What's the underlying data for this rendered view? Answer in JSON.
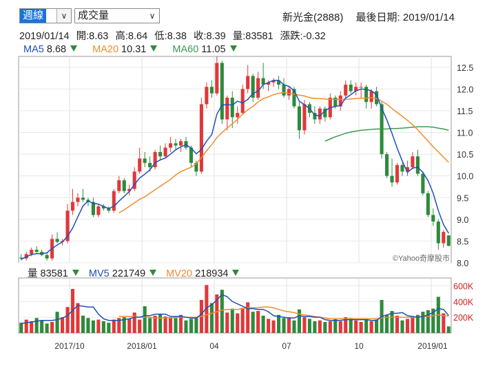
{
  "controls": {
    "period": "週線",
    "indicator": "成交量"
  },
  "header": {
    "name": "新光金(2888)",
    "last_date_label": "最後日期: 2019/01/14"
  },
  "ohlc_line": {
    "date": "2019/01/14",
    "open": "開:8.63",
    "high": "高:8.64",
    "low": "低:8.38",
    "close": "收:8.39",
    "volume": "量:83581",
    "change": "漲跌:-0.32"
  },
  "ma_legend": [
    {
      "label": "MA5",
      "value": "8.68",
      "color": "#1f4fb8"
    },
    {
      "label": "MA20",
      "value": "10.31",
      "color": "#f08c2a"
    },
    {
      "label": "MA60",
      "value": "11.05",
      "color": "#3d9a4d"
    }
  ],
  "vol_legend": [
    {
      "label": "量",
      "value": "83581",
      "color": "#222222"
    },
    {
      "label": "MV5",
      "value": "221749",
      "color": "#1f4fb8"
    },
    {
      "label": "MV20",
      "value": "218934",
      "color": "#f08c2a"
    }
  ],
  "watermark": "©Yahoo奇摩股市",
  "colors": {
    "up": "#e0383a",
    "down": "#2e8a3c",
    "ma5": "#1f4fb8",
    "ma20": "#f08c2a",
    "ma60": "#3d9a4d",
    "axis_text": "#cc2222"
  },
  "chart_data": [
    {
      "type": "candlestick",
      "x_labels": [
        "2017/10",
        "2018/01",
        "04",
        "07",
        "10",
        "2019/01"
      ],
      "y_ticks": [
        "8.0",
        "8.5",
        "9.0",
        "9.5",
        "10.0",
        "10.5",
        "11.0",
        "11.5",
        "12.0",
        "12.5"
      ],
      "ylim": [
        8.0,
        12.75
      ],
      "candles": [
        [
          8.12,
          8.2,
          8.05,
          8.1
        ],
        [
          8.1,
          8.25,
          8.05,
          8.2
        ],
        [
          8.2,
          8.35,
          8.15,
          8.3
        ],
        [
          8.3,
          8.38,
          8.2,
          8.25
        ],
        [
          8.25,
          8.3,
          8.15,
          8.18
        ],
        [
          8.18,
          8.22,
          8.05,
          8.1
        ],
        [
          8.1,
          8.65,
          8.05,
          8.55
        ],
        [
          8.55,
          8.7,
          8.45,
          8.48
        ],
        [
          8.48,
          8.55,
          8.4,
          8.5
        ],
        [
          8.5,
          9.35,
          8.45,
          9.2
        ],
        [
          9.2,
          9.7,
          9.1,
          9.4
        ],
        [
          9.4,
          9.6,
          9.3,
          9.5
        ],
        [
          9.5,
          9.7,
          9.4,
          9.45
        ],
        [
          9.45,
          9.5,
          9.3,
          9.4
        ],
        [
          9.4,
          9.5,
          9.05,
          9.1
        ],
        [
          9.1,
          9.35,
          9.05,
          9.3
        ],
        [
          9.3,
          9.35,
          9.2,
          9.25
        ],
        [
          9.25,
          9.3,
          9.15,
          9.2
        ],
        [
          9.2,
          9.7,
          9.15,
          9.65
        ],
        [
          9.65,
          10.0,
          9.6,
          9.9
        ],
        [
          9.9,
          9.95,
          9.6,
          9.65
        ],
        [
          9.65,
          9.8,
          9.55,
          9.7
        ],
        [
          9.7,
          10.2,
          9.65,
          10.1
        ],
        [
          10.1,
          10.65,
          10.05,
          10.4
        ],
        [
          10.4,
          10.55,
          10.2,
          10.3
        ],
        [
          10.3,
          10.45,
          10.1,
          10.2
        ],
        [
          10.2,
          10.6,
          10.15,
          10.55
        ],
        [
          10.55,
          10.7,
          10.35,
          10.45
        ],
        [
          10.45,
          10.75,
          10.4,
          10.65
        ],
        [
          10.65,
          10.9,
          10.55,
          10.75
        ],
        [
          10.75,
          10.85,
          10.6,
          10.7
        ],
        [
          10.7,
          10.85,
          10.55,
          10.8
        ],
        [
          10.8,
          10.9,
          10.6,
          10.65
        ],
        [
          10.65,
          10.7,
          10.2,
          10.3
        ],
        [
          10.3,
          10.35,
          10.0,
          10.1
        ],
        [
          10.1,
          11.8,
          10.05,
          11.65
        ],
        [
          11.65,
          12.15,
          11.55,
          12.05
        ],
        [
          12.05,
          12.2,
          11.8,
          11.9
        ],
        [
          11.9,
          12.75,
          11.85,
          12.6
        ],
        [
          12.6,
          12.65,
          11.2,
          11.3
        ],
        [
          11.3,
          11.85,
          11.05,
          11.8
        ],
        [
          11.8,
          11.95,
          11.1,
          11.35
        ],
        [
          11.35,
          11.6,
          11.2,
          11.45
        ],
        [
          11.45,
          12.1,
          11.4,
          12.0
        ],
        [
          12.0,
          12.55,
          11.9,
          12.3
        ],
        [
          12.3,
          12.35,
          11.7,
          11.8
        ],
        [
          11.8,
          12.4,
          11.75,
          12.25
        ],
        [
          12.25,
          12.6,
          12.0,
          12.1
        ],
        [
          12.1,
          12.2,
          11.95,
          12.15
        ],
        [
          12.15,
          12.25,
          12.05,
          12.2
        ],
        [
          12.2,
          12.3,
          12.0,
          12.1
        ],
        [
          12.1,
          12.25,
          11.8,
          11.85
        ],
        [
          11.85,
          12.05,
          11.75,
          12.0
        ],
        [
          12.0,
          12.05,
          11.55,
          11.6
        ],
        [
          11.6,
          11.7,
          10.85,
          11.05
        ],
        [
          11.05,
          11.75,
          10.95,
          11.65
        ],
        [
          11.65,
          11.7,
          11.35,
          11.45
        ],
        [
          11.45,
          11.6,
          11.2,
          11.3
        ],
        [
          11.3,
          11.6,
          11.2,
          11.55
        ],
        [
          11.55,
          11.6,
          11.25,
          11.35
        ],
        [
          11.35,
          11.9,
          11.3,
          11.8
        ],
        [
          11.8,
          11.85,
          11.55,
          11.6
        ],
        [
          11.6,
          11.95,
          11.5,
          11.85
        ],
        [
          11.85,
          12.2,
          11.8,
          12.1
        ],
        [
          12.1,
          12.2,
          11.9,
          11.95
        ],
        [
          11.95,
          12.15,
          11.85,
          12.05
        ],
        [
          12.05,
          12.15,
          11.8,
          12.05
        ],
        [
          12.05,
          12.1,
          11.55,
          11.7
        ],
        [
          11.7,
          12.0,
          11.55,
          11.95
        ],
        [
          11.95,
          12.05,
          11.6,
          11.65
        ],
        [
          11.65,
          11.7,
          10.4,
          10.5
        ],
        [
          10.5,
          10.55,
          9.95,
          10.0
        ],
        [
          10.0,
          10.4,
          9.75,
          9.85
        ],
        [
          9.85,
          10.3,
          9.8,
          10.25
        ],
        [
          10.25,
          10.3,
          10.0,
          10.1
        ],
        [
          10.1,
          10.35,
          10.0,
          10.2
        ],
        [
          10.2,
          10.55,
          10.15,
          10.45
        ],
        [
          10.45,
          10.6,
          10.0,
          10.05
        ],
        [
          10.05,
          10.1,
          9.55,
          9.6
        ],
        [
          9.6,
          9.65,
          9.05,
          9.1
        ],
        [
          9.1,
          9.25,
          8.85,
          8.95
        ],
        [
          8.95,
          9.0,
          8.3,
          8.45
        ],
        [
          8.45,
          8.75,
          8.35,
          8.71
        ],
        [
          8.63,
          8.64,
          8.38,
          8.39
        ]
      ],
      "ma5": [
        8.08,
        8.14,
        8.19,
        8.21,
        8.21,
        8.23,
        8.33,
        8.41,
        8.48,
        8.61,
        8.8,
        9.06,
        9.31,
        9.42,
        9.37,
        9.35,
        9.3,
        9.25,
        9.3,
        9.42,
        9.53,
        9.64,
        9.8,
        9.95,
        10.04,
        10.14,
        10.3,
        10.37,
        10.41,
        10.5,
        10.6,
        10.67,
        10.72,
        10.64,
        10.51,
        10.61,
        10.8,
        10.95,
        11.42,
        11.63,
        11.64,
        11.63,
        11.72,
        11.68,
        11.76,
        11.9,
        11.95,
        12.1,
        12.15,
        12.2,
        12.2,
        12.1,
        12.06,
        11.96,
        11.72,
        11.64,
        11.55,
        11.4,
        11.38,
        11.5,
        11.57,
        11.6,
        11.62,
        11.79,
        11.87,
        11.96,
        12.0,
        11.99,
        11.96,
        11.87,
        11.56,
        11.29,
        10.98,
        10.64,
        10.34,
        10.08,
        10.18,
        10.2,
        10.08,
        9.89,
        9.6,
        9.2,
        8.88,
        8.68
      ],
      "ma20": [
        null,
        null,
        null,
        null,
        null,
        null,
        null,
        null,
        null,
        null,
        null,
        null,
        null,
        null,
        null,
        null,
        null,
        null,
        null,
        9.15,
        9.22,
        9.3,
        9.38,
        9.46,
        9.52,
        9.6,
        9.68,
        9.76,
        9.84,
        9.92,
        10.02,
        10.1,
        10.15,
        10.2,
        10.28,
        10.42,
        10.58,
        10.72,
        10.88,
        11.0,
        11.1,
        11.2,
        11.3,
        11.42,
        11.52,
        11.6,
        11.7,
        11.78,
        11.82,
        11.87,
        11.9,
        11.92,
        11.9,
        11.88,
        11.86,
        11.84,
        11.8,
        11.78,
        11.78,
        11.77,
        11.76,
        11.76,
        11.76,
        11.76,
        11.77,
        11.78,
        11.79,
        11.79,
        11.8,
        11.78,
        11.72,
        11.65,
        11.55,
        11.46,
        11.37,
        11.28,
        11.18,
        11.06,
        10.93,
        10.8,
        10.67,
        10.55,
        10.43,
        10.31
      ],
      "ma60": [
        null,
        null,
        null,
        null,
        null,
        null,
        null,
        null,
        null,
        null,
        null,
        null,
        null,
        null,
        null,
        null,
        null,
        null,
        null,
        null,
        null,
        null,
        null,
        null,
        null,
        null,
        null,
        null,
        null,
        null,
        null,
        null,
        null,
        null,
        null,
        null,
        null,
        null,
        null,
        null,
        null,
        null,
        null,
        null,
        null,
        null,
        null,
        null,
        null,
        null,
        null,
        null,
        null,
        null,
        null,
        null,
        null,
        null,
        null,
        10.8,
        10.85,
        10.9,
        10.94,
        10.98,
        11.01,
        11.03,
        11.05,
        11.06,
        11.07,
        11.08,
        11.08,
        11.08,
        11.09,
        11.09,
        11.1,
        11.11,
        11.12,
        11.13,
        11.13,
        11.13,
        11.12,
        11.1,
        11.08,
        11.05
      ]
    },
    {
      "type": "bar",
      "y_ticks": [
        "200K",
        "400K",
        "600K"
      ],
      "ylim": [
        0,
        700000
      ],
      "volume": [
        130000,
        170000,
        150000,
        190000,
        160000,
        120000,
        140000,
        270000,
        200000,
        330000,
        560000,
        380000,
        220000,
        190000,
        160000,
        170000,
        150000,
        130000,
        170000,
        190000,
        200000,
        180000,
        260000,
        170000,
        340000,
        190000,
        220000,
        240000,
        210000,
        200000,
        190000,
        230000,
        160000,
        180000,
        200000,
        420000,
        610000,
        380000,
        490000,
        550000,
        260000,
        310000,
        250000,
        320000,
        390000,
        270000,
        280000,
        220000,
        180000,
        160000,
        230000,
        190000,
        200000,
        160000,
        300000,
        200000,
        180000,
        150000,
        160000,
        140000,
        150000,
        180000,
        150000,
        200000,
        190000,
        160000,
        140000,
        180000,
        150000,
        170000,
        420000,
        230000,
        280000,
        220000,
        160000,
        180000,
        200000,
        230000,
        270000,
        290000,
        310000,
        460000,
        250000,
        83581
      ],
      "mv5": [
        120000,
        130000,
        140000,
        150000,
        160000,
        160000,
        160000,
        170000,
        190000,
        220000,
        290000,
        350000,
        340000,
        330000,
        330000,
        240000,
        180000,
        160000,
        160000,
        160000,
        170000,
        180000,
        200000,
        200000,
        220000,
        220000,
        240000,
        240000,
        240000,
        210000,
        210000,
        210000,
        200000,
        190000,
        190000,
        240000,
        320000,
        360000,
        420000,
        490000,
        460000,
        400000,
        370000,
        340000,
        310000,
        310000,
        300000,
        300000,
        270000,
        220000,
        210000,
        200000,
        190000,
        190000,
        220000,
        210000,
        210000,
        200000,
        200000,
        170000,
        160000,
        160000,
        160000,
        170000,
        170000,
        170000,
        170000,
        170000,
        160000,
        160000,
        210000,
        230000,
        250000,
        250000,
        260000,
        220000,
        210000,
        200000,
        210000,
        230000,
        260000,
        310000,
        300000,
        221749
      ],
      "mv20": [
        null,
        null,
        null,
        null,
        null,
        null,
        null,
        null,
        null,
        null,
        null,
        null,
        null,
        null,
        null,
        null,
        null,
        null,
        null,
        210000,
        210000,
        210000,
        210000,
        200000,
        200000,
        200000,
        190000,
        190000,
        190000,
        190000,
        200000,
        200000,
        200000,
        200000,
        200000,
        210000,
        230000,
        250000,
        270000,
        290000,
        300000,
        300000,
        300000,
        310000,
        320000,
        320000,
        320000,
        330000,
        330000,
        320000,
        300000,
        280000,
        270000,
        260000,
        240000,
        230000,
        220000,
        210000,
        200000,
        190000,
        180000,
        180000,
        180000,
        180000,
        180000,
        180000,
        180000,
        180000,
        180000,
        180000,
        190000,
        200000,
        200000,
        200000,
        200000,
        200000,
        200000,
        200000,
        210000,
        210000,
        220000,
        230000,
        220000,
        218934
      ]
    }
  ]
}
